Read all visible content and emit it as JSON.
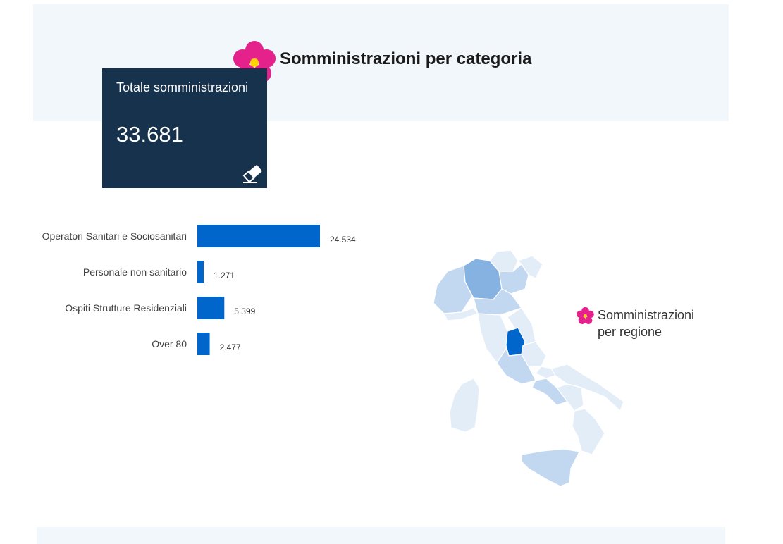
{
  "header": {
    "title": "Somministrazioni per categoria"
  },
  "total_card": {
    "label": "Totale somministrazioni",
    "value": "33.681",
    "reset_icon": "eraser-icon"
  },
  "region_section": {
    "title": "Somministrazioni per regione",
    "icon": "flower-icon"
  },
  "colors": {
    "bar": "#0066cc",
    "card": "#17324d",
    "band": "#f2f7fc",
    "flower": "#e5218b",
    "flower_center": "#ffd400",
    "map_light": "#e3edf8",
    "map_mid": "#c2d8f0",
    "map_darker": "#86b2e2",
    "map_highlight": "#0066cc"
  },
  "chart_data": {
    "type": "bar",
    "orientation": "horizontal",
    "categories": [
      "Operatori Sanitari e Sociosanitari",
      "Personale non sanitario",
      "Ospiti Strutture Residenziali",
      "Over 80"
    ],
    "values": [
      24534,
      1271,
      5399,
      2477
    ],
    "value_labels": [
      "24.534",
      "1.271",
      "5.399",
      "2.477"
    ],
    "xlim": [
      0,
      24534
    ]
  }
}
